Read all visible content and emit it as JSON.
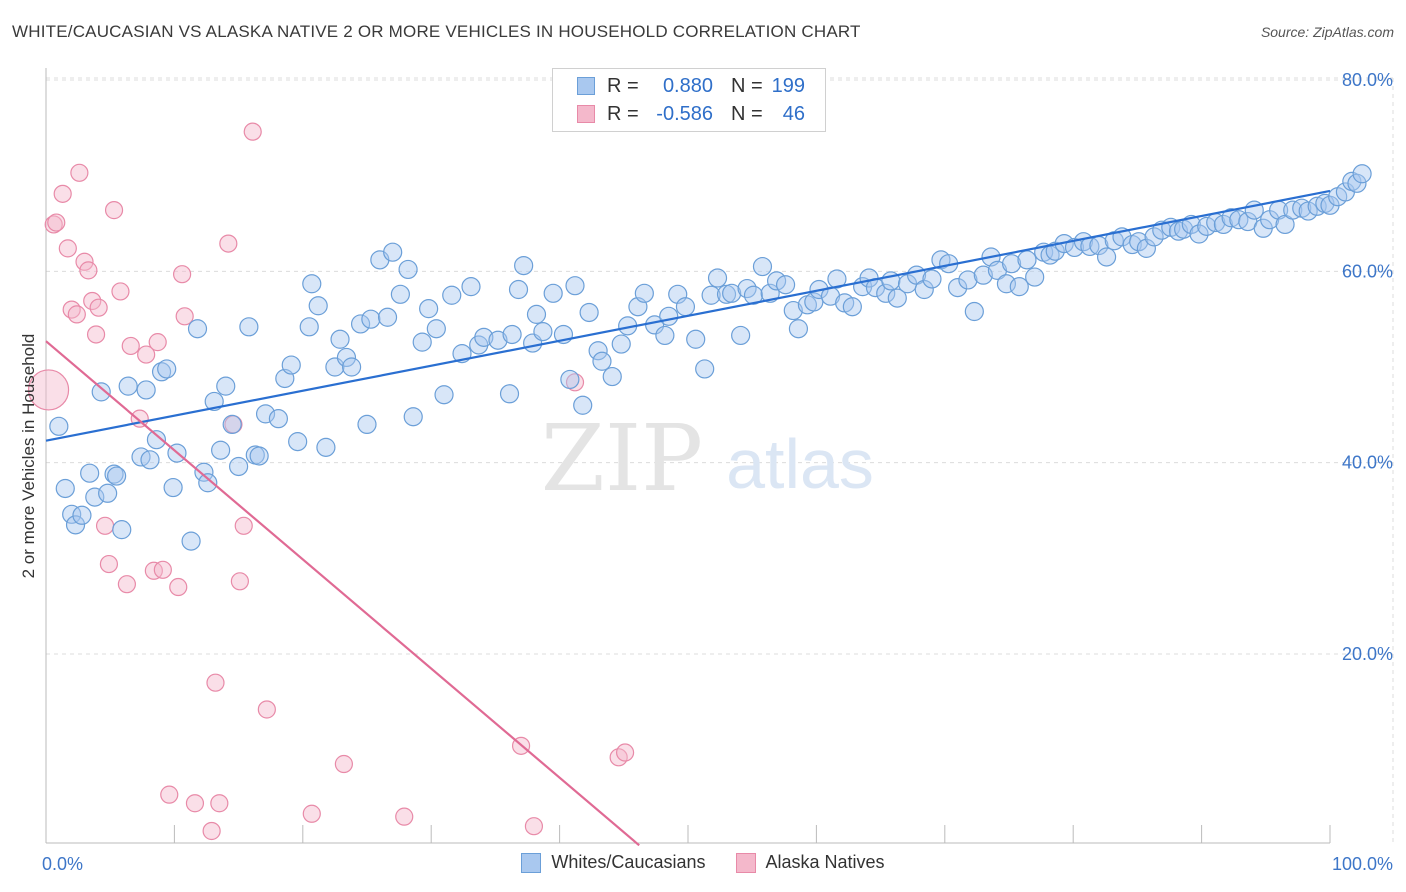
{
  "title": "WHITE/CAUCASIAN VS ALASKA NATIVE 2 OR MORE VEHICLES IN HOUSEHOLD CORRELATION CHART",
  "source": "Source: ZipAtlas.com",
  "watermark": {
    "zip": "ZIP",
    "atlas": "atlas"
  },
  "colors": {
    "blue_fill": "#a9c8ef",
    "blue_stroke": "#6b9fd8",
    "blue_line": "#2a6fd1",
    "pink_fill": "#f4b8cb",
    "pink_stroke": "#e88aa8",
    "pink_line": "#e06a94",
    "axis_label": "#3d76c8",
    "grid": "#dcdcdc"
  },
  "legend": {
    "r_label": "R =",
    "n_label": "N =",
    "rows": [
      {
        "r": "0.880",
        "n": "199"
      },
      {
        "r": "-0.586",
        "n": "46"
      }
    ]
  },
  "bottom_legend": [
    "Whites/Caucasians",
    "Alaska Natives"
  ],
  "chart_data": {
    "type": "scatter",
    "title": "WHITE/CAUCASIAN VS ALASKA NATIVE 2 OR MORE VEHICLES IN HOUSEHOLD CORRELATION CHART",
    "xlabel": "",
    "ylabel": "2 or more Vehicles in Household",
    "xlim": [
      0,
      100
    ],
    "ylim": [
      0,
      82
    ],
    "x_tick_labels": [
      {
        "value": 0,
        "label": "0.0%"
      },
      {
        "value": 100,
        "label": "100.0%"
      }
    ],
    "y_tick_labels": [
      {
        "value": 20,
        "label": "20.0%"
      },
      {
        "value": 40,
        "label": "40.0%"
      },
      {
        "value": 60,
        "label": "60.0%"
      },
      {
        "value": 80,
        "label": "80.0%"
      }
    ],
    "grid": true,
    "legend_position": "top-center",
    "series": [
      {
        "name": "Whites/Caucasians",
        "r": 0.88,
        "n": 199,
        "trend": {
          "x": [
            0,
            100
          ],
          "y": [
            42.3,
            68.4
          ]
        },
        "points": [
          [
            1,
            43.8
          ],
          [
            1.5,
            37.3
          ],
          [
            2,
            34.6
          ],
          [
            2.3,
            33.5
          ],
          [
            2.8,
            34.5
          ],
          [
            3.4,
            38.9
          ],
          [
            3.8,
            36.4
          ],
          [
            4.3,
            47.4
          ],
          [
            4.8,
            36.8
          ],
          [
            5.3,
            38.8
          ],
          [
            5.5,
            38.6
          ],
          [
            5.9,
            33.0
          ],
          [
            6.4,
            48.0
          ],
          [
            7.4,
            40.6
          ],
          [
            7.8,
            47.6
          ],
          [
            8.1,
            40.3
          ],
          [
            8.6,
            42.4
          ],
          [
            9.0,
            49.5
          ],
          [
            9.4,
            49.8
          ],
          [
            9.9,
            37.4
          ],
          [
            10.2,
            41.0
          ],
          [
            11.3,
            31.8
          ],
          [
            11.8,
            54.0
          ],
          [
            12.3,
            39.0
          ],
          [
            12.6,
            37.9
          ],
          [
            13.1,
            46.4
          ],
          [
            13.6,
            41.3
          ],
          [
            14.0,
            48.0
          ],
          [
            14.5,
            44.0
          ],
          [
            15.0,
            39.6
          ],
          [
            15.8,
            54.2
          ],
          [
            16.3,
            40.8
          ],
          [
            16.6,
            40.7
          ],
          [
            17.1,
            45.1
          ],
          [
            18.1,
            44.6
          ],
          [
            18.6,
            48.8
          ],
          [
            19.1,
            50.2
          ],
          [
            19.6,
            42.2
          ],
          [
            20.5,
            54.2
          ],
          [
            20.7,
            58.7
          ],
          [
            21.2,
            56.4
          ],
          [
            21.8,
            41.6
          ],
          [
            22.5,
            50.0
          ],
          [
            22.9,
            52.9
          ],
          [
            23.4,
            51.0
          ],
          [
            23.8,
            50.0
          ],
          [
            24.5,
            54.5
          ],
          [
            25.0,
            44.0
          ],
          [
            25.3,
            55.0
          ],
          [
            26.0,
            61.2
          ],
          [
            26.6,
            55.2
          ],
          [
            27.0,
            62.0
          ],
          [
            27.6,
            57.6
          ],
          [
            28.2,
            60.2
          ],
          [
            28.6,
            44.8
          ],
          [
            29.3,
            52.6
          ],
          [
            29.8,
            56.1
          ],
          [
            30.4,
            54.0
          ],
          [
            31.0,
            47.1
          ],
          [
            31.6,
            57.5
          ],
          [
            32.4,
            51.4
          ],
          [
            33.1,
            58.4
          ],
          [
            33.7,
            52.3
          ],
          [
            34.1,
            53.1
          ],
          [
            35.2,
            52.8
          ],
          [
            36.1,
            47.2
          ],
          [
            36.3,
            53.4
          ],
          [
            36.8,
            58.1
          ],
          [
            37.2,
            60.6
          ],
          [
            37.9,
            52.5
          ],
          [
            38.2,
            55.5
          ],
          [
            38.7,
            53.7
          ],
          [
            39.5,
            57.7
          ],
          [
            40.3,
            53.4
          ],
          [
            40.8,
            48.7
          ],
          [
            41.2,
            58.5
          ],
          [
            41.8,
            46.0
          ],
          [
            42.3,
            55.7
          ],
          [
            43.0,
            51.7
          ],
          [
            43.3,
            50.6
          ],
          [
            44.1,
            49.0
          ],
          [
            44.8,
            52.4
          ],
          [
            45.3,
            54.3
          ],
          [
            46.1,
            56.3
          ],
          [
            46.6,
            57.7
          ],
          [
            47.4,
            54.4
          ],
          [
            48.2,
            53.3
          ],
          [
            48.5,
            55.3
          ],
          [
            49.2,
            57.6
          ],
          [
            49.8,
            56.3
          ],
          [
            50.6,
            52.9
          ],
          [
            51.3,
            49.8
          ],
          [
            51.8,
            57.5
          ],
          [
            52.3,
            59.3
          ],
          [
            53.0,
            57.6
          ],
          [
            53.4,
            57.7
          ],
          [
            54.1,
            53.3
          ],
          [
            54.6,
            58.2
          ],
          [
            55.1,
            57.5
          ],
          [
            55.8,
            60.5
          ],
          [
            56.4,
            57.7
          ],
          [
            56.9,
            59.0
          ],
          [
            57.6,
            58.6
          ],
          [
            58.2,
            55.9
          ],
          [
            58.6,
            54.0
          ],
          [
            59.3,
            56.5
          ],
          [
            59.8,
            56.8
          ],
          [
            60.2,
            58.1
          ],
          [
            61.1,
            57.4
          ],
          [
            61.6,
            59.2
          ],
          [
            62.2,
            56.7
          ],
          [
            62.8,
            56.3
          ],
          [
            63.6,
            58.4
          ],
          [
            64.1,
            59.3
          ],
          [
            64.6,
            58.3
          ],
          [
            65.4,
            57.7
          ],
          [
            65.8,
            59.0
          ],
          [
            66.3,
            57.2
          ],
          [
            67.1,
            58.7
          ],
          [
            67.8,
            59.6
          ],
          [
            68.4,
            58.1
          ],
          [
            69.0,
            59.2
          ],
          [
            69.7,
            61.2
          ],
          [
            70.3,
            60.8
          ],
          [
            71.0,
            58.3
          ],
          [
            71.8,
            59.1
          ],
          [
            72.3,
            55.8
          ],
          [
            73.0,
            59.6
          ],
          [
            73.6,
            61.5
          ],
          [
            74.1,
            60.1
          ],
          [
            74.8,
            58.7
          ],
          [
            75.2,
            60.8
          ],
          [
            75.8,
            58.4
          ],
          [
            76.4,
            61.2
          ],
          [
            77.0,
            59.4
          ],
          [
            77.7,
            62.0
          ],
          [
            78.2,
            61.7
          ],
          [
            78.6,
            62.1
          ],
          [
            79.3,
            62.9
          ],
          [
            80.1,
            62.5
          ],
          [
            80.8,
            63.1
          ],
          [
            81.3,
            62.6
          ],
          [
            82.0,
            62.7
          ],
          [
            82.6,
            61.5
          ],
          [
            83.2,
            63.2
          ],
          [
            83.8,
            63.6
          ],
          [
            84.6,
            62.8
          ],
          [
            85.1,
            63.1
          ],
          [
            85.7,
            62.4
          ],
          [
            86.3,
            63.6
          ],
          [
            86.9,
            64.3
          ],
          [
            87.6,
            64.6
          ],
          [
            88.2,
            64.2
          ],
          [
            88.6,
            64.4
          ],
          [
            89.2,
            64.9
          ],
          [
            89.8,
            63.9
          ],
          [
            90.4,
            64.7
          ],
          [
            91.1,
            65.1
          ],
          [
            91.7,
            64.9
          ],
          [
            92.3,
            65.6
          ],
          [
            92.9,
            65.4
          ],
          [
            93.6,
            65.2
          ],
          [
            94.1,
            66.4
          ],
          [
            94.8,
            64.5
          ],
          [
            95.3,
            65.4
          ],
          [
            96.0,
            66.4
          ],
          [
            96.5,
            64.9
          ],
          [
            97.1,
            66.4
          ],
          [
            97.8,
            66.6
          ],
          [
            98.3,
            66.3
          ],
          [
            99.0,
            66.8
          ],
          [
            99.6,
            67.1
          ],
          [
            100.0,
            66.9
          ],
          [
            100.6,
            67.8
          ],
          [
            101.2,
            68.3
          ],
          [
            101.7,
            69.4
          ],
          [
            102.1,
            69.2
          ],
          [
            102.5,
            70.2
          ]
        ]
      },
      {
        "name": "Alaska Natives",
        "r": -0.586,
        "n": 46,
        "trend": {
          "x": [
            0,
            46.2
          ],
          "y": [
            52.7,
            0
          ]
        },
        "points": [
          [
            0.2,
            47.6
          ],
          [
            0.6,
            64.9
          ],
          [
            0.8,
            65.1
          ],
          [
            1.3,
            68.1
          ],
          [
            1.7,
            62.4
          ],
          [
            2.0,
            56.0
          ],
          [
            2.4,
            55.5
          ],
          [
            2.6,
            70.3
          ],
          [
            3.0,
            61.0
          ],
          [
            3.3,
            60.1
          ],
          [
            3.6,
            56.9
          ],
          [
            3.9,
            53.4
          ],
          [
            4.1,
            56.2
          ],
          [
            4.6,
            33.4
          ],
          [
            4.9,
            29.4
          ],
          [
            5.3,
            66.4
          ],
          [
            5.8,
            57.9
          ],
          [
            6.3,
            27.3
          ],
          [
            6.6,
            52.2
          ],
          [
            7.3,
            44.6
          ],
          [
            7.8,
            51.3
          ],
          [
            8.4,
            28.7
          ],
          [
            8.7,
            52.6
          ],
          [
            9.1,
            28.8
          ],
          [
            9.6,
            5.3
          ],
          [
            10.3,
            27.0
          ],
          [
            10.8,
            55.3
          ],
          [
            10.6,
            59.7
          ],
          [
            11.6,
            4.4
          ],
          [
            12.9,
            1.5
          ],
          [
            13.2,
            17.0
          ],
          [
            13.5,
            4.4
          ],
          [
            14.2,
            62.9
          ],
          [
            14.6,
            44.0
          ],
          [
            15.1,
            27.6
          ],
          [
            15.4,
            33.4
          ],
          [
            16.1,
            74.6
          ],
          [
            17.2,
            14.2
          ],
          [
            20.7,
            3.3
          ],
          [
            23.2,
            8.5
          ],
          [
            27.9,
            3.0
          ],
          [
            37.0,
            10.4
          ],
          [
            38.0,
            2.0
          ],
          [
            41.2,
            48.4
          ],
          [
            44.6,
            9.2
          ],
          [
            45.1,
            9.7
          ]
        ]
      }
    ]
  }
}
